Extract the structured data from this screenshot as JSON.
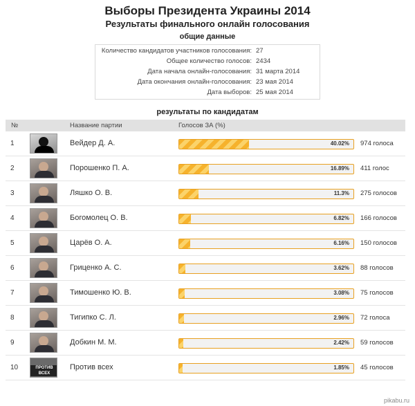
{
  "header": {
    "title": "Выборы Президента Украины 2014",
    "subtitle": "Результаты финального онлайн голосования"
  },
  "summary": {
    "heading": "общие данные",
    "rows": [
      {
        "label": "Количество кандидатов участников голосования:",
        "value": "27"
      },
      {
        "label": "Общее количество голосов:",
        "value": "2434"
      },
      {
        "label": "Дата начала онлайн-голосования:",
        "value": "31 марта 2014"
      },
      {
        "label": "Дата окончания онлайн-голосования:",
        "value": "23 мая 2014"
      },
      {
        "label": "Дата выборов:",
        "value": "25 мая 2014"
      }
    ]
  },
  "results": {
    "heading": "результаты по кандидатам",
    "columns": {
      "num": "№",
      "party": "Название партии",
      "votes": "Голосов ЗА (%)"
    },
    "rows": [
      {
        "num": "1",
        "name": "Вейдер Д. А.",
        "percent": "40.02%",
        "share": 0.4002,
        "votes": "974 голоса",
        "photo": "vader-photo"
      },
      {
        "num": "2",
        "name": "Порошенко П. А.",
        "percent": "16.89%",
        "share": 0.1689,
        "votes": "411 голос",
        "photo": "candidate-photo"
      },
      {
        "num": "3",
        "name": "Ляшко О. В.",
        "percent": "11.3%",
        "share": 0.113,
        "votes": "275 голосов",
        "photo": "candidate-photo"
      },
      {
        "num": "4",
        "name": "Богомолец О. В.",
        "percent": "6.82%",
        "share": 0.0682,
        "votes": "166 голосов",
        "photo": "candidate-photo"
      },
      {
        "num": "5",
        "name": "Царёв О. А.",
        "percent": "6.16%",
        "share": 0.0616,
        "votes": "150 голосов",
        "photo": "candidate-photo"
      },
      {
        "num": "6",
        "name": "Гриценко А. С.",
        "percent": "3.62%",
        "share": 0.0362,
        "votes": "88 голосов",
        "photo": "candidate-photo"
      },
      {
        "num": "7",
        "name": "Тимошенко Ю. В.",
        "percent": "3.08%",
        "share": 0.0308,
        "votes": "75 голосов",
        "photo": "candidate-photo"
      },
      {
        "num": "8",
        "name": "Тигипко С. Л.",
        "percent": "2.96%",
        "share": 0.0296,
        "votes": "72 голоса",
        "photo": "candidate-photo"
      },
      {
        "num": "9",
        "name": "Добкин М. М.",
        "percent": "2.42%",
        "share": 0.0242,
        "votes": "59 голосов",
        "photo": "candidate-photo"
      },
      {
        "num": "10",
        "name": "Против всех",
        "percent": "1.85%",
        "share": 0.0185,
        "votes": "45 голосов",
        "photo": "against-all-photo",
        "photo_caption": "ПРОТИВ ВСЕХ"
      }
    ]
  },
  "watermark": "pikabu.ru",
  "colors": {
    "bar_fill": "#f6b22c",
    "bar_stripe": "#fbd36a",
    "bar_border": "#e8a020",
    "header_bg": "#e1e1e1"
  }
}
